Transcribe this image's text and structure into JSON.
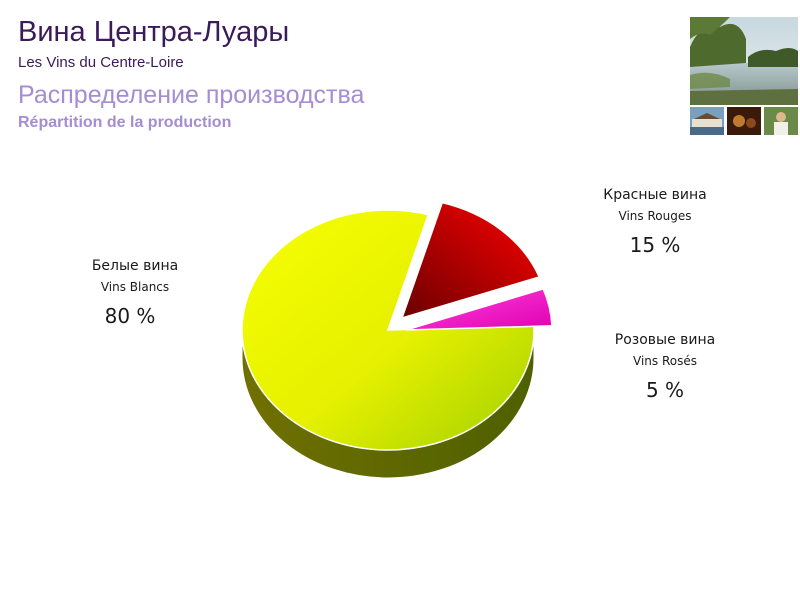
{
  "header": {
    "title_ru": "Вина Центра-Луары",
    "title_fr": "Les Vins du Centre-Loire",
    "subtitle_ru": "Распределение производства",
    "subtitle_fr": "Répartition de la production"
  },
  "chart_data": {
    "type": "pie",
    "slices": [
      {
        "label_ru": "Белые вина",
        "label_fr": "Vins Blancs",
        "value": 80,
        "value_text": "80 %",
        "color": "#e6f000"
      },
      {
        "label_ru": "Красные вина",
        "label_fr": "Vins Rouges",
        "value": 15,
        "value_text": "15 %",
        "color": "#d40000"
      },
      {
        "label_ru": "Розовые вина",
        "label_fr": "Vins Rosés",
        "value": 5,
        "value_text": "5 %",
        "color": "#ff00cc"
      }
    ],
    "three_d": true,
    "legend": "none"
  },
  "colors": {
    "title": "#3b1a5a",
    "subtitle": "#a58cd3"
  }
}
